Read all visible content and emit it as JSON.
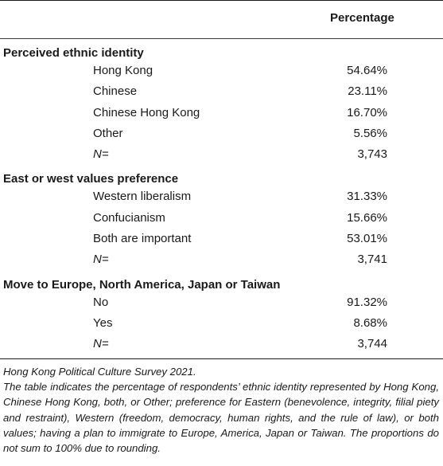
{
  "table": {
    "column_header": "Percentage",
    "sections": [
      {
        "title": "Perceived ethnic identity",
        "rows": [
          {
            "label": "Hong Kong",
            "value": "54.64%"
          },
          {
            "label": "Chinese",
            "value": "23.11%"
          },
          {
            "label": "Chinese Hong Kong",
            "value": "16.70%"
          },
          {
            "label": "Other",
            "value": "5.56%"
          },
          {
            "label": "N=",
            "value": "3,743"
          }
        ]
      },
      {
        "title": "East or west values preference",
        "rows": [
          {
            "label": "Western liberalism",
            "value": "31.33%"
          },
          {
            "label": "Confucianism",
            "value": "15.66%"
          },
          {
            "label": "Both are important",
            "value": "53.01%"
          },
          {
            "label": "N=",
            "value": "3,741"
          }
        ]
      },
      {
        "title": "Move to Europe, North America, Japan or Taiwan",
        "rows": [
          {
            "label": "No",
            "value": "91.32%"
          },
          {
            "label": "Yes",
            "value": "8.68%"
          },
          {
            "label": "N=",
            "value": "3,744"
          }
        ]
      }
    ]
  },
  "notes": {
    "source": "Hong Kong Political Culture Survey 2021.",
    "description": "The table indicates the percentage of respondents’ ethnic identity represented by Hong Kong, Chinese Hong Kong, both, or Other; preference for Eastern (benevolence, integrity, filial piety and restraint), Western (freedom, democracy, human rights, and the rule of law), or both values; having a plan to immigrate to Europe, America, Japan or Taiwan. The proportions do not sum to 100% due to rounding."
  }
}
